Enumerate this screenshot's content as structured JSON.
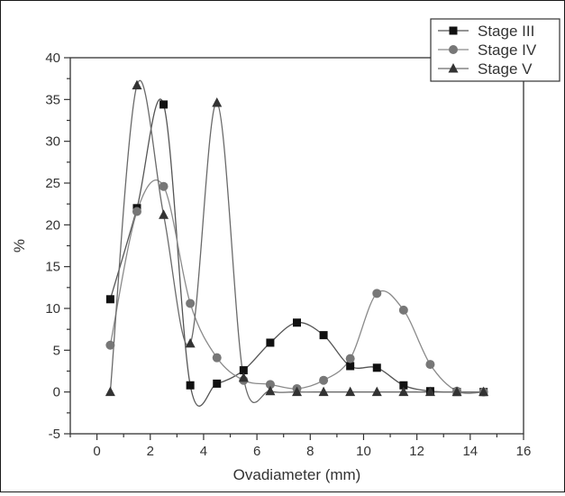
{
  "chart_data": {
    "type": "line",
    "title": "",
    "xlabel": "Ovadiameter (mm)",
    "ylabel": "%",
    "xlim": [
      -1,
      16
    ],
    "ylim": [
      -5,
      40
    ],
    "x_ticks": [
      0,
      2,
      4,
      6,
      8,
      10,
      12,
      14,
      16
    ],
    "y_ticks": [
      -5,
      0,
      5,
      10,
      15,
      20,
      25,
      30,
      35,
      40
    ],
    "grid": false,
    "legend_position": "top-right",
    "curve_style": "smooth spline through points",
    "series": [
      {
        "name": "Stage III",
        "marker": "square",
        "color": "#111111",
        "line_color": "#555555",
        "points": [
          [
            0.5,
            11.1
          ],
          [
            1.5,
            22.0
          ],
          [
            2.5,
            34.4
          ],
          [
            3.5,
            0.8
          ],
          [
            4.5,
            1.0
          ],
          [
            5.5,
            2.6
          ],
          [
            6.5,
            5.9
          ],
          [
            7.5,
            8.3
          ],
          [
            8.5,
            6.8
          ],
          [
            9.5,
            3.1
          ],
          [
            10.5,
            2.9
          ],
          [
            11.5,
            0.8
          ],
          [
            12.5,
            0.1
          ],
          [
            13.5,
            0.0
          ],
          [
            14.5,
            0.0
          ]
        ]
      },
      {
        "name": "Stage IV",
        "marker": "circle",
        "color": "#777777",
        "line_color": "#8a8a8a",
        "points": [
          [
            0.5,
            5.6
          ],
          [
            1.5,
            21.6
          ],
          [
            2.5,
            24.6
          ],
          [
            3.5,
            10.6
          ],
          [
            4.5,
            4.1
          ],
          [
            5.5,
            1.4
          ],
          [
            6.5,
            0.9
          ],
          [
            7.5,
            0.4
          ],
          [
            8.5,
            1.4
          ],
          [
            9.5,
            4.0
          ],
          [
            10.5,
            11.8
          ],
          [
            11.5,
            9.8
          ],
          [
            12.5,
            3.3
          ],
          [
            13.5,
            0.1
          ],
          [
            14.5,
            0.0
          ]
        ]
      },
      {
        "name": "Stage V",
        "marker": "triangle",
        "color": "#333333",
        "line_color": "#6a6a6a",
        "points": [
          [
            0.5,
            0.0
          ],
          [
            1.5,
            36.7
          ],
          [
            2.5,
            21.2
          ],
          [
            3.5,
            5.8
          ],
          [
            4.5,
            34.6
          ],
          [
            5.5,
            1.7
          ],
          [
            6.5,
            0.1
          ],
          [
            7.5,
            0.0
          ],
          [
            8.5,
            0.0
          ],
          [
            9.5,
            0.0
          ],
          [
            10.5,
            0.0
          ],
          [
            11.5,
            0.0
          ],
          [
            12.5,
            0.0
          ],
          [
            13.5,
            0.0
          ],
          [
            14.5,
            0.0
          ]
        ]
      }
    ]
  }
}
